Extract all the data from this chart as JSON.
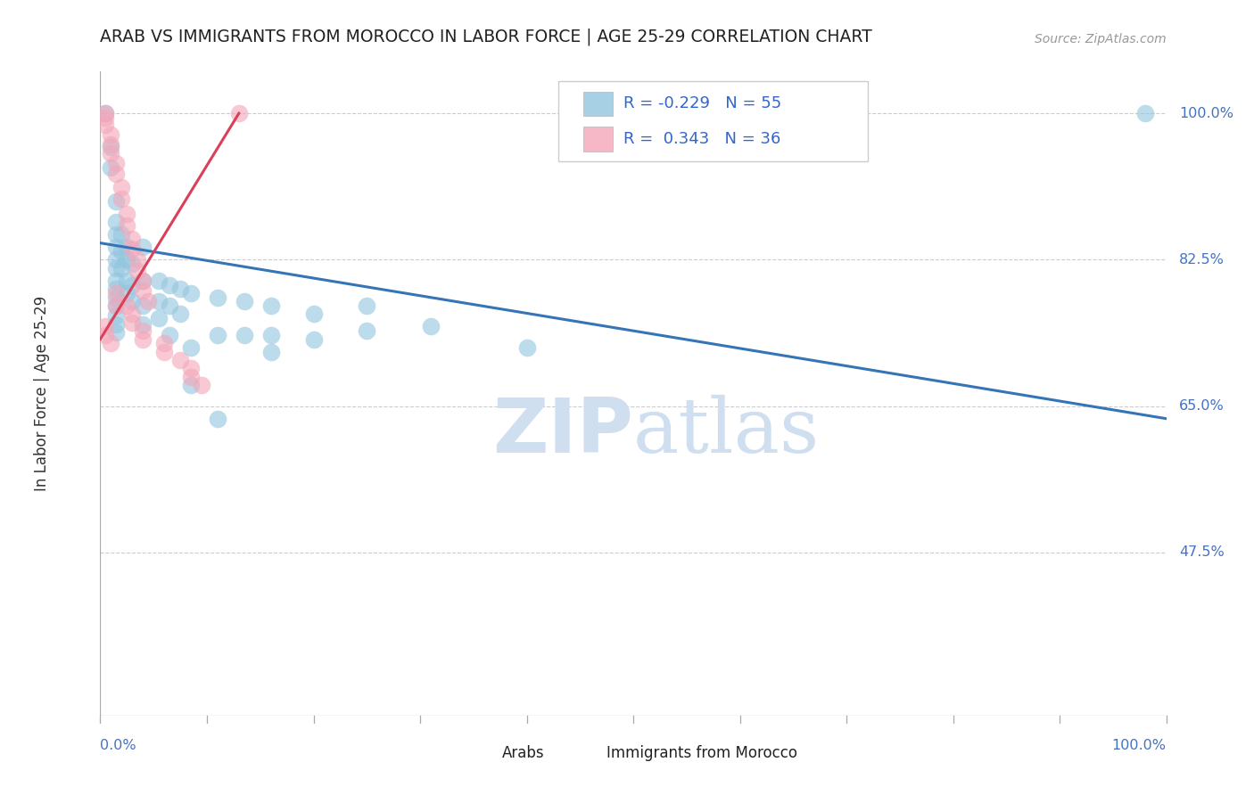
{
  "title": "ARAB VS IMMIGRANTS FROM MOROCCO IN LABOR FORCE | AGE 25-29 CORRELATION CHART",
  "source": "Source: ZipAtlas.com",
  "ylabel": "In Labor Force | Age 25-29",
  "ytick_labels": [
    "100.0%",
    "82.5%",
    "65.0%",
    "47.5%"
  ],
  "ytick_values": [
    1.0,
    0.825,
    0.65,
    0.475
  ],
  "xlim": [
    0.0,
    1.0
  ],
  "ylim": [
    0.28,
    1.05
  ],
  "legend_R_blue": "-0.229",
  "legend_N_blue": "55",
  "legend_R_pink": "0.343",
  "legend_N_pink": "36",
  "blue_color": "#92c5de",
  "pink_color": "#f4a6b8",
  "blue_line_color": "#3575b5",
  "pink_line_color": "#d9405a",
  "watermark_color": "#d0dff0",
  "blue_scatter": [
    [
      0.005,
      1.0
    ],
    [
      0.01,
      0.96
    ],
    [
      0.01,
      0.935
    ],
    [
      0.015,
      0.895
    ],
    [
      0.015,
      0.87
    ],
    [
      0.015,
      0.855
    ],
    [
      0.015,
      0.84
    ],
    [
      0.015,
      0.825
    ],
    [
      0.015,
      0.815
    ],
    [
      0.015,
      0.8
    ],
    [
      0.015,
      0.79
    ],
    [
      0.015,
      0.78
    ],
    [
      0.015,
      0.77
    ],
    [
      0.015,
      0.758
    ],
    [
      0.015,
      0.748
    ],
    [
      0.015,
      0.738
    ],
    [
      0.02,
      0.855
    ],
    [
      0.02,
      0.835
    ],
    [
      0.02,
      0.815
    ],
    [
      0.025,
      0.84
    ],
    [
      0.025,
      0.825
    ],
    [
      0.025,
      0.8
    ],
    [
      0.025,
      0.785
    ],
    [
      0.03,
      0.82
    ],
    [
      0.03,
      0.795
    ],
    [
      0.03,
      0.775
    ],
    [
      0.04,
      0.84
    ],
    [
      0.04,
      0.8
    ],
    [
      0.04,
      0.77
    ],
    [
      0.04,
      0.748
    ],
    [
      0.055,
      0.8
    ],
    [
      0.055,
      0.775
    ],
    [
      0.055,
      0.755
    ],
    [
      0.065,
      0.795
    ],
    [
      0.065,
      0.77
    ],
    [
      0.065,
      0.735
    ],
    [
      0.075,
      0.79
    ],
    [
      0.075,
      0.76
    ],
    [
      0.085,
      0.785
    ],
    [
      0.085,
      0.72
    ],
    [
      0.085,
      0.675
    ],
    [
      0.11,
      0.78
    ],
    [
      0.11,
      0.735
    ],
    [
      0.11,
      0.635
    ],
    [
      0.135,
      0.775
    ],
    [
      0.135,
      0.735
    ],
    [
      0.16,
      0.77
    ],
    [
      0.16,
      0.735
    ],
    [
      0.16,
      0.715
    ],
    [
      0.2,
      0.76
    ],
    [
      0.2,
      0.73
    ],
    [
      0.25,
      0.77
    ],
    [
      0.25,
      0.74
    ],
    [
      0.31,
      0.745
    ],
    [
      0.4,
      0.72
    ],
    [
      0.98,
      1.0
    ]
  ],
  "pink_scatter": [
    [
      0.005,
      1.0
    ],
    [
      0.005,
      0.995
    ],
    [
      0.005,
      0.986
    ],
    [
      0.01,
      0.975
    ],
    [
      0.01,
      0.963
    ],
    [
      0.01,
      0.952
    ],
    [
      0.015,
      0.94
    ],
    [
      0.015,
      0.928
    ],
    [
      0.02,
      0.912
    ],
    [
      0.02,
      0.898
    ],
    [
      0.025,
      0.88
    ],
    [
      0.025,
      0.866
    ],
    [
      0.03,
      0.85
    ],
    [
      0.03,
      0.838
    ],
    [
      0.035,
      0.825
    ],
    [
      0.035,
      0.812
    ],
    [
      0.04,
      0.8
    ],
    [
      0.04,
      0.788
    ],
    [
      0.045,
      0.775
    ],
    [
      0.005,
      0.745
    ],
    [
      0.005,
      0.735
    ],
    [
      0.01,
      0.725
    ],
    [
      0.015,
      0.785
    ],
    [
      0.015,
      0.77
    ],
    [
      0.025,
      0.77
    ],
    [
      0.03,
      0.76
    ],
    [
      0.03,
      0.75
    ],
    [
      0.04,
      0.74
    ],
    [
      0.04,
      0.73
    ],
    [
      0.06,
      0.725
    ],
    [
      0.06,
      0.715
    ],
    [
      0.075,
      0.705
    ],
    [
      0.085,
      0.695
    ],
    [
      0.085,
      0.685
    ],
    [
      0.13,
      1.0
    ],
    [
      0.095,
      0.675
    ]
  ],
  "blue_trend_x": [
    0.0,
    1.0
  ],
  "blue_trend_y": [
    0.845,
    0.635
  ],
  "pink_trend_x": [
    0.0,
    0.13
  ],
  "pink_trend_y": [
    0.73,
    1.0
  ]
}
